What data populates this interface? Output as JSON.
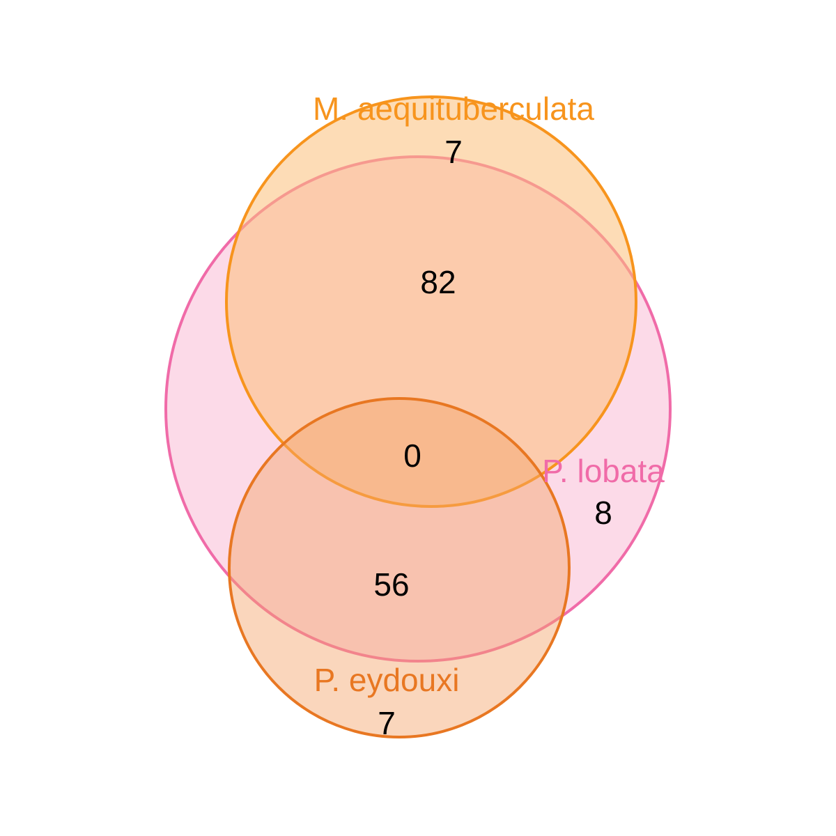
{
  "diagram": {
    "type": "venn",
    "sets": [
      {
        "id": "lobata",
        "name": "P. lobata",
        "color": "#f06ba8",
        "fill": "#f7a6c9"
      },
      {
        "id": "aequituberculata",
        "name": "M. aequituberculata",
        "color": "#f7941d",
        "fill": "#fbbf7a"
      },
      {
        "id": "eydouxi",
        "name": "P. eydouxi",
        "color": "#e87722",
        "fill": "#f3a46a"
      }
    ],
    "regions": {
      "aequituberculata_only": "7",
      "lobata_aequituberculata": "82",
      "all_three": "0",
      "lobata_only": "8",
      "lobata_eydouxi": "56",
      "eydouxi_only": "7"
    }
  }
}
